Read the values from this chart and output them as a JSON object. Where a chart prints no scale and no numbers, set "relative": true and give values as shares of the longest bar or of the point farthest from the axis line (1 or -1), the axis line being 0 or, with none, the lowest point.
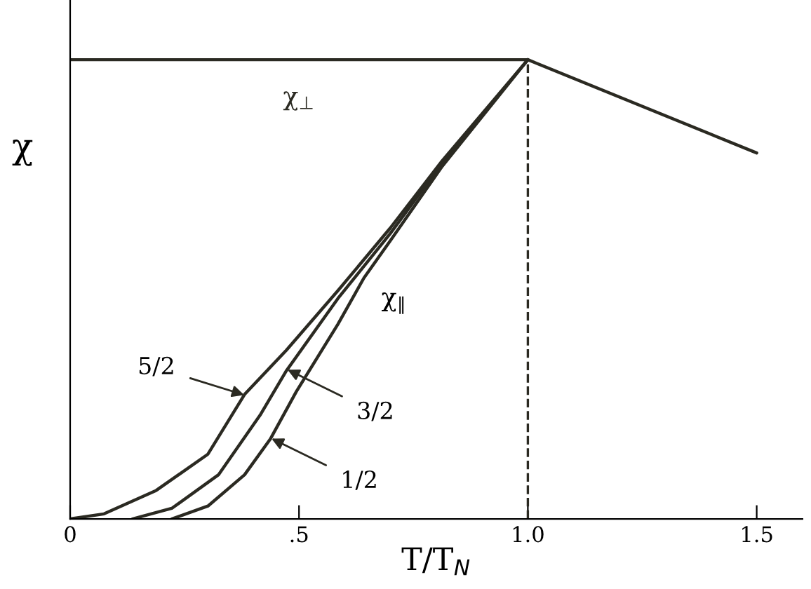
{
  "chart_data": {
    "type": "line",
    "relative": true,
    "xlabel": "T/T$_{N}$",
    "ylabel": "χ",
    "xlim": [
      0,
      1.6
    ],
    "xticks": [
      0,
      {
        "value": 0.5,
        "label": ".5"
      },
      {
        "value": 1.0,
        "label": "1.0"
      },
      1.5
    ],
    "grid": false,
    "legend": false,
    "marker": "none",
    "line_style": "solid",
    "series": [
      {
        "name": "χ$_{⊥}$",
        "color": "#2b2a22",
        "x": [
          0,
          1.0,
          1.5
        ],
        "values": [
          1,
          1,
          0.797
        ]
      },
      {
        "color": "#2b2a22",
        "x": [
          0,
          0.074,
          0.188,
          0.301,
          0.381,
          0.472,
          0.585,
          0.699,
          0.813,
          1.0
        ],
        "values": [
          0,
          0.011,
          0.062,
          0.141,
          0.271,
          0.367,
          0.497,
          0.633,
          0.78,
          1.0
        ]
      },
      {
        "color": "#2b2a22",
        "x": [
          0.136,
          0.222,
          0.324,
          0.415,
          0.472,
          0.585,
          0.699,
          0.813,
          1.0
        ],
        "values": [
          0,
          0.023,
          0.096,
          0.226,
          0.322,
          0.48,
          0.621,
          0.775,
          1.0
        ]
      },
      {
        "color": "#2b2a22",
        "x": [
          0.222,
          0.301,
          0.381,
          0.438,
          0.494,
          0.585,
          0.642,
          0.699,
          0.813,
          1.0
        ],
        "values": [
          0,
          0.028,
          0.096,
          0.175,
          0.277,
          0.424,
          0.525,
          0.605,
          0.768,
          1.0
        ]
      }
    ],
    "ref_lines": [
      {
        "axis": "x",
        "value": 1.0,
        "line_style": "dashed",
        "color": "#2b2a22"
      }
    ],
    "annotations": [
      "χ$_{∥}$",
      {
        "text": "5/2",
        "x": 0.38,
        "y": 0.27
      },
      {
        "text": "3/2",
        "x": 0.475,
        "y": 0.325
      },
      {
        "text": "1/2",
        "x": 0.44,
        "y": 0.175
      }
    ]
  }
}
